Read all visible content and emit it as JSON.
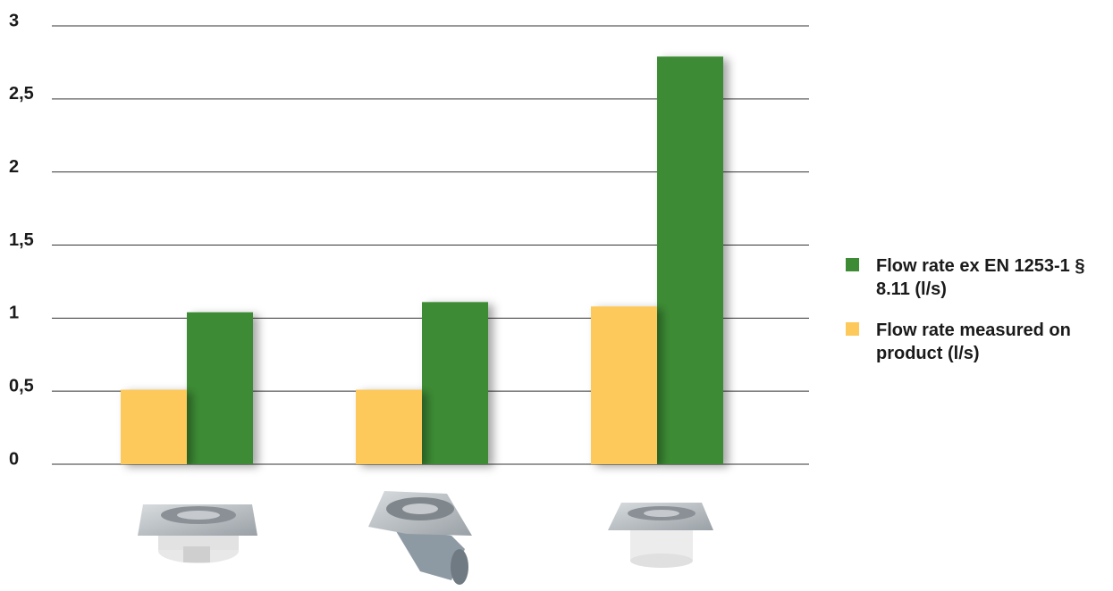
{
  "chart_data": {
    "type": "bar",
    "categories": [
      null,
      null,
      null
    ],
    "series": [
      {
        "name": "Flow rate ex EN 1253-1 § 8.11 (l/s)",
        "color": "#3d8c35",
        "values": [
          1.04,
          1.11,
          2.79
        ]
      },
      {
        "name": "Flow rate measured on product (l/s)",
        "color": "#fcc95a",
        "values": [
          0.51,
          0.51,
          1.08
        ]
      }
    ],
    "ylim": [
      0,
      3
    ],
    "yticks": [
      0,
      {
        "value": 0.5,
        "label": "0,5"
      },
      1,
      {
        "value": 1.5,
        "label": "1,5"
      },
      2,
      {
        "value": 2.5,
        "label": "2,5"
      },
      3
    ],
    "grid": true,
    "legend": "right"
  }
}
